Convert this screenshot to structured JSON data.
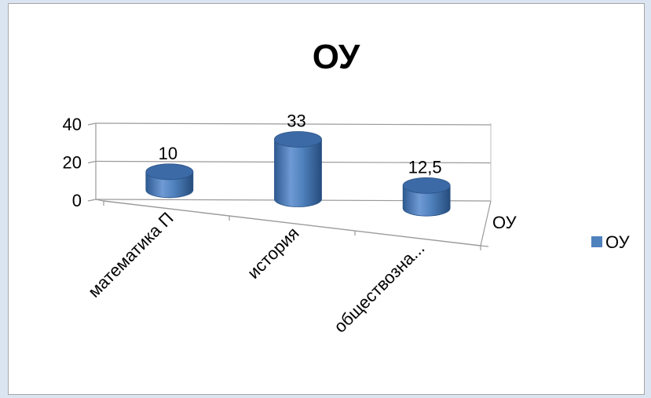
{
  "chart_data": {
    "type": "bar",
    "title": "ОУ",
    "categories": [
      "математика П",
      "история",
      "обществозна..."
    ],
    "series": [
      {
        "name": "ОУ",
        "values": [
          10,
          33,
          12.5
        ],
        "labels": [
          "10",
          "33",
          "12,5"
        ]
      }
    ],
    "ylim": [
      0,
      40
    ],
    "yticks": [
      0,
      20,
      40
    ],
    "depth_axis_label": "ОУ",
    "legend": {
      "position": "right",
      "entries": [
        "ОУ"
      ]
    },
    "grid": true,
    "bar_style": "3d-cylinder",
    "colors": {
      "bar": "#4f81bd",
      "bar_dark": "#2f5b91",
      "bar_top": "#3c6aa6"
    }
  }
}
